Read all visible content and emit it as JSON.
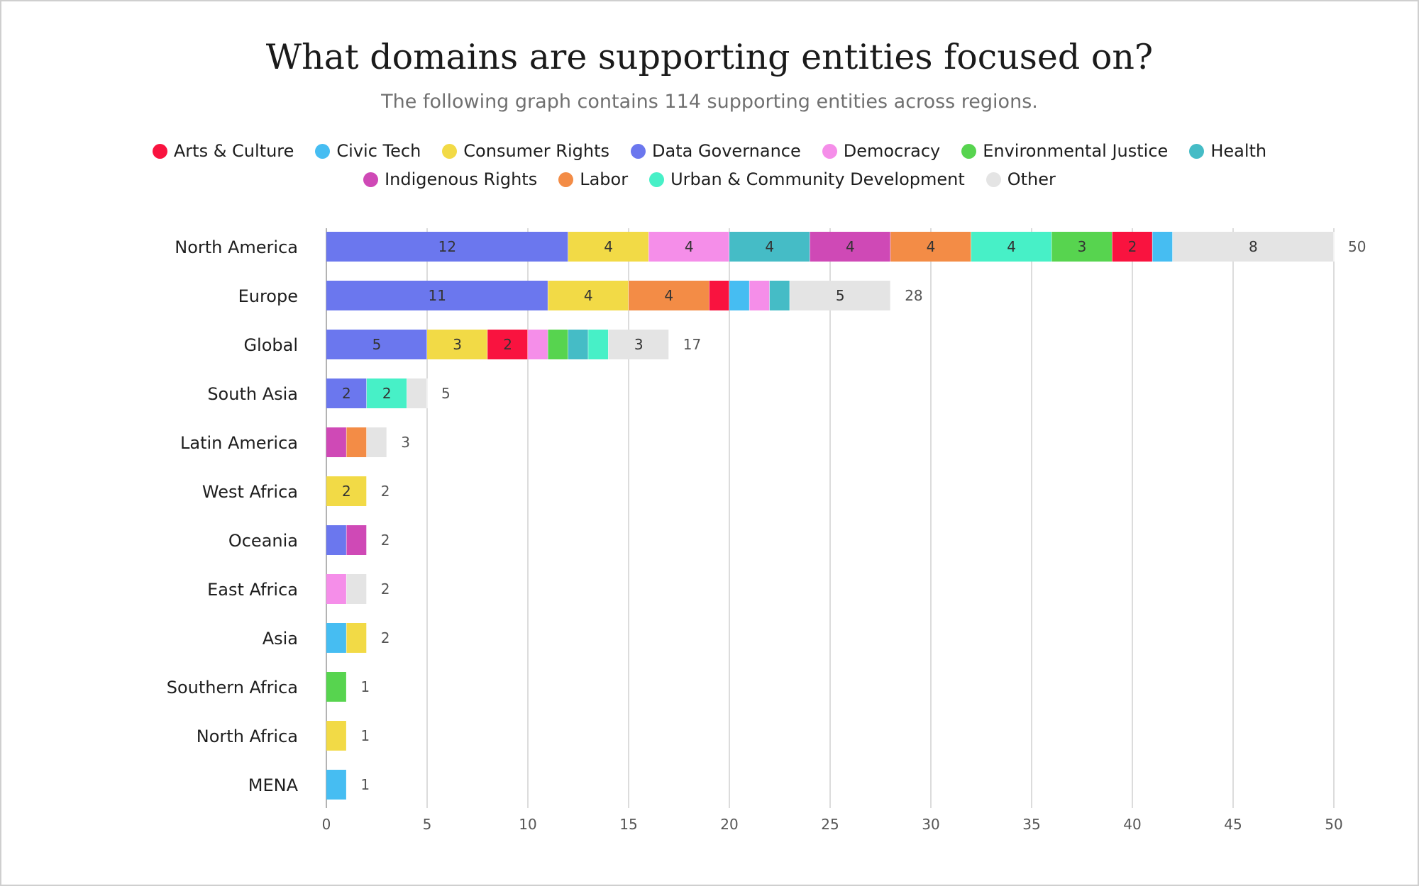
{
  "chart_data": {
    "type": "bar",
    "orientation": "horizontal",
    "stacked": true,
    "title": "What domains are supporting entities focused on?",
    "subtitle": "The following graph contains 114 supporting entities across regions.",
    "categories": [
      "North America",
      "Europe",
      "Global",
      "South Asia",
      "Latin America",
      "West Africa",
      "Oceania",
      "East Africa",
      "Asia",
      "Southern Africa",
      "North Africa",
      "MENA"
    ],
    "totals": [
      50,
      28,
      17,
      5,
      3,
      2,
      2,
      2,
      2,
      1,
      1,
      1
    ],
    "series": [
      {
        "name": "Data Governance",
        "color": "#6b77ee",
        "values": [
          12,
          11,
          5,
          2,
          0,
          0,
          1,
          0,
          0,
          0,
          0,
          0
        ]
      },
      {
        "name": "Consumer Rights",
        "color": "#f2da46",
        "values": [
          4,
          4,
          3,
          0,
          0,
          2,
          0,
          0,
          1,
          0,
          1,
          0
        ]
      },
      {
        "name": "Democracy",
        "color": "#f58ee9",
        "values": [
          4,
          1,
          1,
          0,
          0,
          0,
          0,
          1,
          0,
          0,
          0,
          0
        ]
      },
      {
        "name": "Health",
        "color": "#45bcc6",
        "values": [
          4,
          1,
          1,
          0,
          0,
          0,
          0,
          0,
          0,
          0,
          0,
          0
        ]
      },
      {
        "name": "Indigenous Rights",
        "color": "#cf49b6",
        "values": [
          4,
          0,
          0,
          0,
          1,
          0,
          1,
          0,
          0,
          0,
          0,
          0
        ]
      },
      {
        "name": "Labor",
        "color": "#f38c46",
        "values": [
          4,
          4,
          0,
          0,
          1,
          0,
          0,
          0,
          0,
          0,
          0,
          0
        ]
      },
      {
        "name": "Urban & Community Development",
        "color": "#47f0c7",
        "values": [
          4,
          0,
          1,
          2,
          0,
          0,
          0,
          0,
          0,
          0,
          0,
          0
        ]
      },
      {
        "name": "Environmental Justice",
        "color": "#57d44f",
        "values": [
          3,
          0,
          1,
          0,
          0,
          0,
          0,
          0,
          0,
          1,
          0,
          0
        ]
      },
      {
        "name": "Arts & Culture",
        "color": "#f9133f",
        "values": [
          2,
          1,
          2,
          0,
          0,
          0,
          0,
          0,
          0,
          0,
          0,
          0
        ]
      },
      {
        "name": "Civic Tech",
        "color": "#46bdf2",
        "values": [
          1,
          1,
          0,
          0,
          0,
          0,
          0,
          0,
          1,
          0,
          0,
          1
        ]
      },
      {
        "name": "Other",
        "color": "#e4e4e4",
        "values": [
          8,
          5,
          3,
          1,
          1,
          0,
          0,
          1,
          0,
          0,
          0,
          0
        ]
      }
    ],
    "segment_order": [
      [
        "Data Governance",
        "Consumer Rights",
        "Democracy",
        "Health",
        "Indigenous Rights",
        "Labor",
        "Urban & Community Development",
        "Environmental Justice",
        "Arts & Culture",
        "Civic Tech",
        "Other"
      ],
      [
        "Data Governance",
        "Consumer Rights",
        "Labor",
        "Arts & Culture",
        "Civic Tech",
        "Democracy",
        "Health",
        "Other"
      ],
      [
        "Data Governance",
        "Consumer Rights",
        "Arts & Culture",
        "Democracy",
        "Environmental Justice",
        "Health",
        "Urban & Community Development",
        "Other"
      ],
      [
        "Data Governance",
        "Urban & Community Development",
        "Other"
      ],
      [
        "Indigenous Rights",
        "Labor",
        "Other"
      ],
      [
        "Consumer Rights"
      ],
      [
        "Data Governance",
        "Indigenous Rights"
      ],
      [
        "Democracy",
        "Other"
      ],
      [
        "Civic Tech",
        "Consumer Rights"
      ],
      [
        "Environmental Justice"
      ],
      [
        "Consumer Rights"
      ],
      [
        "Civic Tech"
      ]
    ],
    "legend": [
      {
        "name": "Arts & Culture",
        "color": "#f9133f"
      },
      {
        "name": "Civic Tech",
        "color": "#46bdf2"
      },
      {
        "name": "Consumer Rights",
        "color": "#f2da46"
      },
      {
        "name": "Data Governance",
        "color": "#6b77ee"
      },
      {
        "name": "Democracy",
        "color": "#f58ee9"
      },
      {
        "name": "Environmental Justice",
        "color": "#57d44f"
      },
      {
        "name": "Health",
        "color": "#45bcc6"
      },
      {
        "name": "Indigenous Rights",
        "color": "#cf49b6"
      },
      {
        "name": "Labor",
        "color": "#f38c46"
      },
      {
        "name": "Urban & Community Development",
        "color": "#47f0c7"
      },
      {
        "name": "Other",
        "color": "#e4e4e4"
      }
    ],
    "legend_position": "top-center",
    "xlim": [
      0,
      50
    ],
    "x_ticks": [
      0,
      5,
      10,
      15,
      20,
      25,
      30,
      35,
      40,
      45,
      50
    ],
    "grid": true,
    "segment_label_min_value": 2,
    "xlabel": "",
    "ylabel": ""
  }
}
